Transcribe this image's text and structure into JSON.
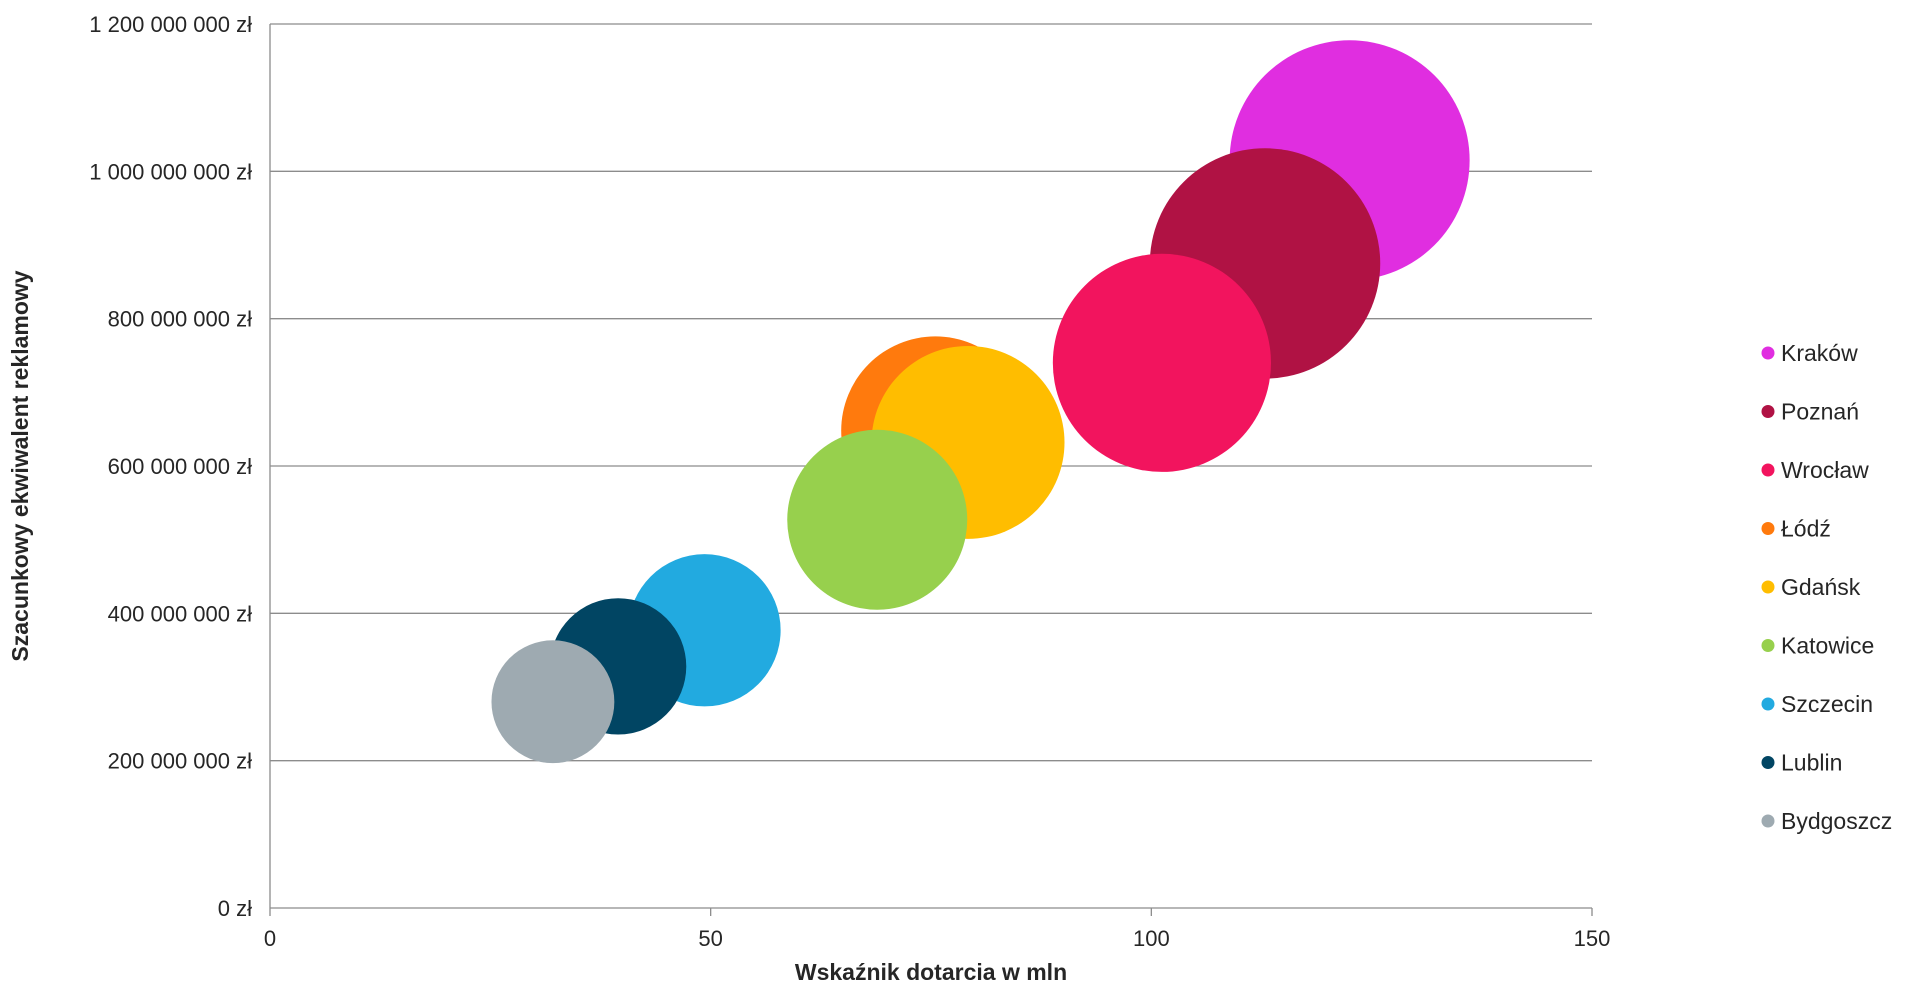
{
  "chart_data": {
    "type": "bubble",
    "xlabel": "Wskaźnik dotarcia w mln",
    "ylabel": "Szacunkowy ekwiwalent reklamowy",
    "xlim": [
      0,
      150
    ],
    "ylim": [
      0,
      1200000000
    ],
    "x_ticks": [
      {
        "value": 0,
        "label": "0"
      },
      {
        "value": 50,
        "label": "50"
      },
      {
        "value": 100,
        "label": "100"
      },
      {
        "value": 150,
        "label": "150"
      }
    ],
    "y_ticks": [
      {
        "value": 0,
        "label": "0 zł"
      },
      {
        "value": 200000000,
        "label": "200 000 000 zł"
      },
      {
        "value": 400000000,
        "label": "400 000 000 zł"
      },
      {
        "value": 600000000,
        "label": "600 000 000 zł"
      },
      {
        "value": 800000000,
        "label": "800 000 000 zł"
      },
      {
        "value": 1000000000,
        "label": "1 000 000 000 zł"
      },
      {
        "value": 1200000000,
        "label": "1 200 000 000 zł"
      }
    ],
    "grid": "horizontal",
    "legend_position": "right",
    "series": [
      {
        "name": "Kraków",
        "x": 122.5,
        "y": 1015000000,
        "size": 122.5,
        "color": "#e02ee0"
      },
      {
        "name": "Poznań",
        "x": 112.9,
        "y": 875000000,
        "size": 112.9,
        "color": "#b01244"
      },
      {
        "name": "Wrocław",
        "x": 101.2,
        "y": 740000000,
        "size": 101.2,
        "color": "#f2145e"
      },
      {
        "name": "Łódź",
        "x": 75.5,
        "y": 648000000,
        "size": 75.5,
        "color": "#ff7a0d"
      },
      {
        "name": "Gdańsk",
        "x": 79.2,
        "y": 632000000,
        "size": 79.2,
        "color": "#ffbd00"
      },
      {
        "name": "Katowice",
        "x": 68.9,
        "y": 527000000,
        "size": 68.9,
        "color": "#97d04d"
      },
      {
        "name": "Szczecin",
        "x": 49.3,
        "y": 377000000,
        "size": 49.3,
        "color": "#22aae0"
      },
      {
        "name": "Lublin",
        "x": 39.5,
        "y": 328000000,
        "size": 39.5,
        "color": "#014563"
      },
      {
        "name": "Bydgoszcz",
        "x": 32.1,
        "y": 280000000,
        "size": 32.1,
        "color": "#9eaab1"
      }
    ]
  }
}
